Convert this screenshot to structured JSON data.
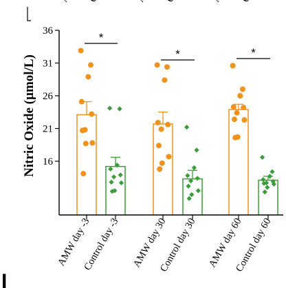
{
  "chart_data": {
    "type": "bar",
    "ylabel": "Nitric Oxide (µmol/L)",
    "ylim": [
      10,
      36
    ],
    "yticks": [
      16,
      21,
      26,
      31,
      36
    ],
    "categories": [
      "AMW day -3",
      "Control day -3",
      "AMW day 30",
      "Control day 30",
      "AMW day 60",
      "Control day 60"
    ],
    "bars": [
      {
        "group": "AMW",
        "mean": 23.1,
        "err": 2.0,
        "color": "#f0921e",
        "marker": "circle",
        "points": [
          32.9,
          30.7,
          28.9,
          25.1,
          23.2,
          20.8,
          20.7,
          18.8,
          18.7,
          14.1
        ]
      },
      {
        "group": "Control",
        "mean": 15.2,
        "err": 1.4,
        "color": "#3a9d3a",
        "marker": "diamond",
        "points": [
          24.1,
          24.0,
          15.4,
          14.8,
          13.9,
          13.6,
          12.8,
          12.7,
          11.5,
          11.4
        ]
      },
      {
        "group": "AMW",
        "mean": 21.7,
        "err": 1.8,
        "color": "#f0921e",
        "marker": "circle",
        "points": [
          30.7,
          30.4,
          28.4,
          21.9,
          21.6,
          20.9,
          18.4,
          16.7,
          15.7,
          14.8
        ]
      },
      {
        "group": "Control",
        "mean": 13.3,
        "err": 1.3,
        "color": "#3a9d3a",
        "marker": "diamond",
        "points": [
          21.2,
          17.7,
          15.0,
          13.8,
          13.4,
          13.0,
          12.2,
          11.5,
          10.9,
          10.3
        ]
      },
      {
        "group": "AMW",
        "mean": 23.9,
        "err": 0.8,
        "color": "#f0921e",
        "marker": "circle",
        "points": [
          30.6,
          27.0,
          26.0,
          24.3,
          24.2,
          23.4,
          22.4,
          22.3,
          19.7,
          19.6
        ]
      },
      {
        "group": "Control",
        "mean": 13.1,
        "err": 0.6,
        "color": "#3a9d3a",
        "marker": "diamond",
        "points": [
          16.6,
          14.4,
          13.7,
          13.2,
          12.9,
          12.7,
          12.6,
          12.5,
          12.0,
          11.3
        ]
      }
    ],
    "significance": [
      {
        "pair": [
          0,
          1
        ],
        "label": "*"
      },
      {
        "pair": [
          2,
          3
        ],
        "label": "*"
      },
      {
        "pair": [
          4,
          5
        ],
        "label": "*"
      }
    ],
    "top_cropped_labels": [
      "A",
      "Co",
      "A",
      "Co",
      "A",
      "Co"
    ],
    "panel_label": "I"
  }
}
